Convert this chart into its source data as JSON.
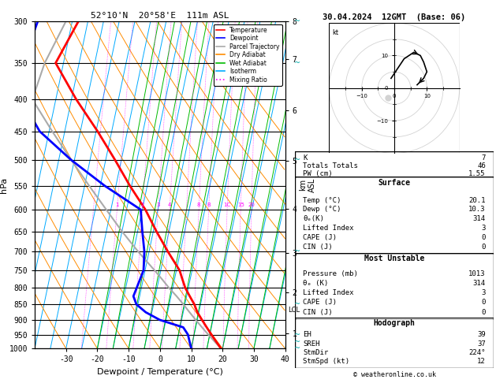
{
  "title_left": "52°10'N  20°58'E  111m ASL",
  "title_right": "30.04.2024  12GMT  (Base: 06)",
  "xlabel": "Dewpoint / Temperature (°C)",
  "ylabel_left": "hPa",
  "pressure_levels": [
    300,
    350,
    400,
    450,
    500,
    550,
    600,
    650,
    700,
    750,
    800,
    850,
    900,
    950,
    1000
  ],
  "temp_ticks": [
    -30,
    -20,
    -10,
    0,
    10,
    20,
    30,
    40
  ],
  "temp_min": -40,
  "temp_max": 40,
  "skew_factor": 22,
  "isotherm_temps": [
    -50,
    -45,
    -40,
    -35,
    -30,
    -25,
    -20,
    -15,
    -10,
    -5,
    0,
    5,
    10,
    15,
    20,
    25,
    30,
    35,
    40,
    45
  ],
  "dry_adiabat_T0": [
    -40,
    -30,
    -20,
    -10,
    0,
    10,
    20,
    30,
    40,
    50,
    60,
    70,
    80,
    90,
    100
  ],
  "wet_adiabat_T0": [
    -20,
    -15,
    -10,
    -5,
    0,
    5,
    10,
    15,
    20,
    25,
    30,
    35
  ],
  "mixing_ratio_vals": [
    0.5,
    1,
    2,
    3,
    4,
    6,
    8,
    10,
    15,
    20,
    25
  ],
  "temperature_profile": {
    "pressure": [
      1013,
      1000,
      975,
      950,
      925,
      900,
      875,
      850,
      825,
      800,
      775,
      750,
      700,
      650,
      600,
      550,
      500,
      450,
      400,
      350,
      300
    ],
    "temp": [
      20.1,
      19.5,
      17.5,
      15.5,
      13.5,
      11.5,
      9.5,
      8.0,
      6.0,
      4.0,
      2.5,
      1.0,
      -4.0,
      -9.0,
      -14.0,
      -20.5,
      -27.0,
      -34.5,
      -43.5,
      -52.5,
      -48.0
    ]
  },
  "dewpoint_profile": {
    "pressure": [
      1013,
      1000,
      975,
      950,
      925,
      900,
      875,
      850,
      825,
      800,
      775,
      750,
      700,
      650,
      600,
      550,
      500,
      450,
      400,
      350,
      300
    ],
    "temp": [
      10.3,
      10.0,
      9.0,
      8.0,
      6.0,
      -2.0,
      -7.0,
      -10.5,
      -12.0,
      -11.5,
      -11.0,
      -10.5,
      -11.5,
      -13.5,
      -15.5,
      -28.5,
      -41.0,
      -53.0,
      -61.0,
      -63.0,
      -61.0
    ]
  },
  "parcel_profile": {
    "pressure": [
      1013,
      1000,
      975,
      950,
      925,
      900,
      875,
      850,
      825,
      800,
      775,
      750,
      700,
      650,
      600,
      550,
      500,
      450,
      400,
      350,
      300
    ],
    "temp": [
      20.1,
      19.5,
      17.0,
      14.5,
      12.0,
      9.5,
      7.0,
      4.5,
      1.8,
      -1.2,
      -4.0,
      -7.0,
      -13.5,
      -20.0,
      -26.5,
      -33.5,
      -41.0,
      -49.0,
      -57.5,
      -56.0,
      -52.0
    ]
  },
  "lcl_pressure": 867,
  "alt_ticks_p": [
    945,
    813,
    704,
    598,
    502,
    417,
    345,
    300
  ],
  "alt_ticks_km": [
    1,
    2,
    3,
    4,
    5,
    6,
    7,
    8
  ],
  "colors": {
    "temperature": "#ff0000",
    "dewpoint": "#0000ff",
    "parcel": "#aaaaaa",
    "dry_adiabat": "#ff8c00",
    "wet_adiabat": "#00bb00",
    "isotherm": "#00aaff",
    "mixing_ratio": "#ff00ff",
    "background": "#ffffff"
  },
  "legend_items": [
    [
      "Temperature",
      "#ff0000",
      "solid"
    ],
    [
      "Dewpoint",
      "#0000ff",
      "solid"
    ],
    [
      "Parcel Trajectory",
      "#aaaaaa",
      "solid"
    ],
    [
      "Dry Adiabat",
      "#ff8c00",
      "solid"
    ],
    [
      "Wet Adiabat",
      "#00bb00",
      "solid"
    ],
    [
      "Isotherm",
      "#00aaff",
      "solid"
    ],
    [
      "Mixing Ratio",
      "#ff00ff",
      "dotted"
    ]
  ],
  "info": {
    "K": 7,
    "Totals_Totals": 46,
    "PW_cm": 1.55,
    "Surf_Temp": 20.1,
    "Surf_Dewp": 10.3,
    "Surf_theta_e": 314,
    "Surf_LI": 3,
    "Surf_CAPE": 0,
    "Surf_CIN": 0,
    "MU_Pres": 1013,
    "MU_theta_e": 314,
    "MU_LI": 3,
    "MU_CAPE": 0,
    "MU_CIN": 0,
    "EH": 39,
    "SREH": 37,
    "StmDir": 224,
    "StmSpd_kt": 12
  },
  "hodo_u": [
    -1,
    1,
    3,
    6,
    8,
    9,
    10,
    9,
    7
  ],
  "hodo_v": [
    3,
    6,
    9,
    11,
    10,
    8,
    5,
    3,
    1
  ]
}
